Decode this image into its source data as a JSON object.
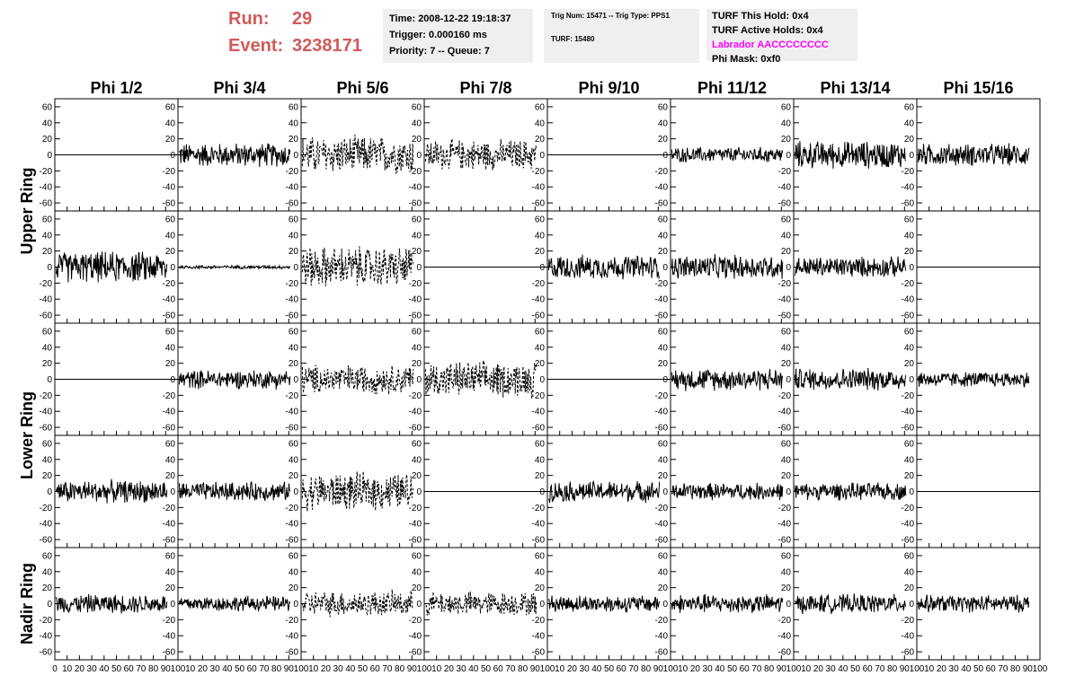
{
  "header": {
    "run_label": "Run:",
    "run_value": "29",
    "event_label": "Event:",
    "event_value": "3238171"
  },
  "info1": {
    "time": "Time: 2008-12-22 19:18:37",
    "trigger": "Trigger: 0.000160 ms",
    "priority": "Priority: 7 -- Queue: 7"
  },
  "info2": {
    "trig": "Trig Num: 15471 -- Trig Type: PPS1",
    "turf": "TURF: 15480"
  },
  "info3": {
    "this_hold": "TURF This Hold: 0x4",
    "active_holds": "TURF Active Holds: 0x4",
    "labrador": "Labrador AACCCCCCCC",
    "phi_mask": "Phi Mask: 0xf0"
  },
  "colors": {
    "header_red": "#d25a5a",
    "labrador_magenta": "#ff00ff",
    "trace": "#000000"
  },
  "chart_data": {
    "type": "line",
    "grid": false,
    "columns": [
      "Phi 1/2",
      "Phi 3/4",
      "Phi 5/6",
      "Phi 7/8",
      "Phi 9/10",
      "Phi 11/12",
      "Phi 13/14",
      "Phi 15/16"
    ],
    "ring_labels": [
      "Upper Ring",
      "Lower Ring",
      "Nadir Ring"
    ],
    "xlim": [
      0,
      100
    ],
    "ylim": [
      -70,
      70
    ],
    "x_ticks": [
      0,
      10,
      20,
      30,
      40,
      50,
      60,
      70,
      80,
      90,
      100
    ],
    "y_ticks": [
      -60,
      -40,
      -20,
      0,
      20,
      40,
      60
    ],
    "panel_rows": [
      {
        "ring": "Upper Ring",
        "amplitudes": [
          0,
          14,
          22,
          18,
          0,
          9,
          16,
          13
        ]
      },
      {
        "ring": "Upper Ring",
        "amplitudes": [
          18,
          2,
          24,
          0,
          14,
          14,
          12,
          0
        ]
      },
      {
        "ring": "Lower Ring",
        "amplitudes": [
          0,
          11,
          17,
          21,
          0,
          13,
          13,
          9
        ]
      },
      {
        "ring": "Lower Ring",
        "amplitudes": [
          13,
          11,
          22,
          0,
          12,
          10,
          10,
          0
        ]
      },
      {
        "ring": "Nadir Ring",
        "amplitudes": [
          11,
          9,
          15,
          14,
          10,
          11,
          11,
          10
        ]
      }
    ],
    "dashed_columns": [
      2,
      3
    ]
  }
}
